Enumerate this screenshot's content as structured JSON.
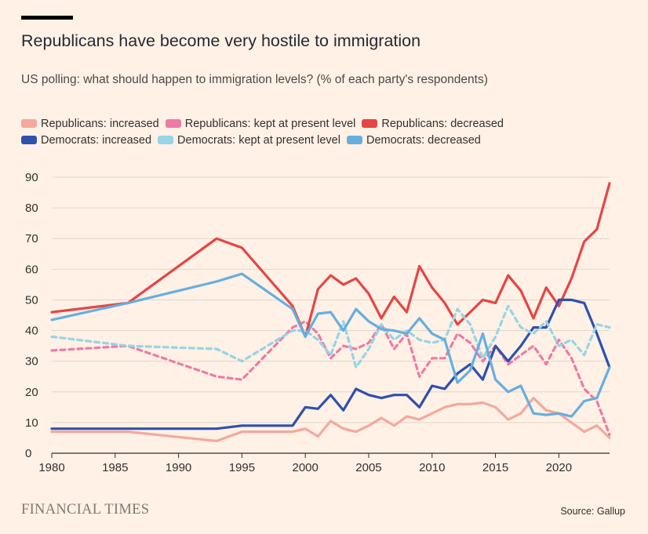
{
  "header": {
    "title": "Republicans have become very hostile to immigration",
    "subtitle": "US polling: what should happen to immigration levels? (% of each party's respondents)"
  },
  "footer": {
    "brand": "FINANCIAL TIMES",
    "source": "Source: Gallup"
  },
  "chart_data": {
    "type": "line",
    "title": "Republicans have become very hostile to immigration",
    "subtitle": "US polling: what should happen to immigration levels? (% of each party's respondents)",
    "xlabel": "",
    "ylabel": "",
    "xlim": [
      1980,
      2024
    ],
    "ylim": [
      0,
      90
    ],
    "xticks": [
      1980,
      1985,
      1990,
      1995,
      2000,
      2005,
      2010,
      2015,
      2020
    ],
    "yticks": [
      0,
      10,
      20,
      30,
      40,
      50,
      60,
      70,
      80,
      90
    ],
    "grid": "horizontal",
    "legend_position": "top",
    "series": [
      {
        "name": "Republicans: increased",
        "color": "#f5a89e",
        "dash": false,
        "x": [
          1980,
          1986,
          1993,
          1995,
          1999,
          2000,
          2001,
          2002,
          2003,
          2004,
          2005,
          2006,
          2007,
          2008,
          2009,
          2010,
          2011,
          2012,
          2013,
          2014,
          2015,
          2016,
          2017,
          2018,
          2019,
          2020,
          2021,
          2022,
          2023,
          2024
        ],
        "y": [
          7,
          7,
          4,
          7,
          7,
          8,
          5.5,
          10.5,
          8,
          7,
          9,
          11.5,
          9,
          12,
          11,
          13,
          15,
          16,
          16,
          16.5,
          15,
          11,
          13,
          18,
          14,
          13,
          10,
          7,
          9,
          5
        ]
      },
      {
        "name": "Republicans: kept at present level",
        "color": "#ee7ba5",
        "dash": true,
        "x": [
          1980,
          1986,
          1993,
          1995,
          1999,
          2000,
          2001,
          2002,
          2003,
          2004,
          2005,
          2006,
          2007,
          2008,
          2009,
          2010,
          2011,
          2012,
          2013,
          2014,
          2015,
          2016,
          2017,
          2018,
          2019,
          2020,
          2021,
          2022,
          2023,
          2024
        ],
        "y": [
          33.5,
          35,
          25,
          24,
          41,
          43,
          39,
          31,
          35,
          34,
          36,
          42,
          34,
          39,
          25,
          31,
          31,
          39,
          36,
          30,
          35,
          29,
          32,
          35,
          29,
          37,
          31,
          21,
          17,
          6
        ]
      },
      {
        "name": "Republicans: decreased",
        "color": "#e64545",
        "dash": false,
        "x": [
          1980,
          1986,
          1993,
          1995,
          1999,
          2000,
          2001,
          2002,
          2003,
          2004,
          2005,
          2006,
          2007,
          2008,
          2009,
          2010,
          2011,
          2012,
          2013,
          2014,
          2015,
          2016,
          2017,
          2018,
          2019,
          2020,
          2021,
          2022,
          2023,
          2024
        ],
        "y": [
          46,
          49,
          70,
          67,
          48,
          38,
          53.5,
          58,
          55,
          57,
          52,
          44,
          51,
          46,
          61,
          54,
          49,
          42,
          46,
          50,
          49,
          58,
          53,
          44,
          54,
          48,
          57,
          69,
          73,
          88
        ]
      },
      {
        "name": "Democrats: increased",
        "color": "#3050b0",
        "dash": false,
        "x": [
          1980,
          1986,
          1993,
          1995,
          1999,
          2000,
          2001,
          2002,
          2003,
          2004,
          2005,
          2006,
          2007,
          2008,
          2009,
          2010,
          2011,
          2012,
          2013,
          2014,
          2015,
          2016,
          2017,
          2018,
          2019,
          2020,
          2021,
          2022,
          2023,
          2024
        ],
        "y": [
          8,
          8,
          8,
          9,
          9,
          15,
          14.5,
          19,
          14,
          21,
          19,
          18,
          19,
          19,
          15,
          22,
          21,
          26,
          29,
          24,
          35,
          30,
          35,
          41,
          41,
          50,
          50,
          49,
          39,
          28
        ]
      },
      {
        "name": "Democrats: kept at present level",
        "color": "#96d4e6",
        "dash": true,
        "x": [
          1980,
          1986,
          1993,
          1995,
          1999,
          2000,
          2001,
          2002,
          2003,
          2004,
          2005,
          2006,
          2007,
          2008,
          2009,
          2010,
          2011,
          2012,
          2013,
          2014,
          2015,
          2016,
          2017,
          2018,
          2019,
          2020,
          2021,
          2022,
          2023,
          2024
        ],
        "y": [
          38,
          35,
          34,
          30,
          40,
          40,
          37,
          32,
          43,
          28,
          34,
          42,
          37,
          40,
          37,
          36,
          37,
          47,
          42,
          31,
          38,
          48,
          41,
          39,
          43,
          35,
          37,
          32,
          42,
          41
        ]
      },
      {
        "name": "Democrats: decreased",
        "color": "#66aee0",
        "dash": false,
        "x": [
          1980,
          1986,
          1993,
          1995,
          1999,
          2000,
          2001,
          2002,
          2003,
          2004,
          2005,
          2006,
          2007,
          2008,
          2009,
          2010,
          2011,
          2012,
          2013,
          2014,
          2015,
          2016,
          2017,
          2018,
          2019,
          2020,
          2021,
          2022,
          2023,
          2024
        ],
        "y": [
          43.5,
          49,
          56,
          58.5,
          47,
          38,
          45.5,
          46,
          40,
          47,
          43,
          40.5,
          40,
          39,
          44,
          39,
          37,
          23,
          27,
          39,
          24,
          20,
          22,
          13,
          12.5,
          13,
          12,
          17,
          18,
          28
        ]
      }
    ]
  }
}
